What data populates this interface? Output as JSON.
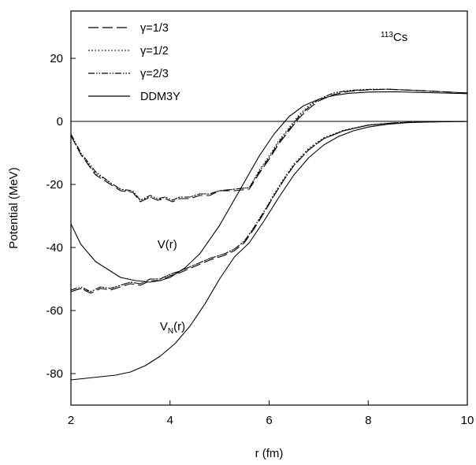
{
  "chart_data": {
    "type": "line",
    "title": "",
    "xlabel": "r (fm)",
    "ylabel": "Potential (MeV)",
    "xlim": [
      2,
      10
    ],
    "ylim": [
      -90,
      35
    ],
    "x_ticks": [
      2,
      4,
      6,
      8,
      10
    ],
    "y_ticks": [
      -80,
      -60,
      -40,
      -20,
      0,
      20
    ],
    "grid": false,
    "legend": {
      "placement": "top-left",
      "entries": [
        "γ=1/3",
        "γ=1/2",
        "γ=2/3",
        "DDM3Y"
      ]
    },
    "annotations": [
      {
        "id": "nucleus",
        "mass_number": "113",
        "symbol": "Cs",
        "x": 8.25,
        "y": 25.5
      },
      {
        "id": "total_label",
        "text": "V(r)",
        "x": 4.0,
        "y": -39
      },
      {
        "id": "nuclear_label",
        "base": "V",
        "sub": "N",
        "tail": "(r)",
        "x": 4.05,
        "y": -65
      }
    ],
    "zero_line": 0,
    "series": [
      {
        "name": "γ=1/3",
        "group": "V(r)",
        "style": "long-dash",
        "x": [
          2.0,
          2.2,
          2.5,
          2.8,
          3.0,
          3.25,
          3.4,
          3.6,
          3.75,
          3.9,
          4.05,
          4.2,
          4.4,
          4.6,
          4.8,
          5.0,
          5.3,
          5.6,
          5.8,
          6.0,
          6.2,
          6.4,
          6.6,
          6.8,
          7.0,
          7.3,
          7.6,
          8.0,
          8.4,
          9.0,
          9.5,
          10.0
        ],
        "y": [
          -4.5,
          -10.5,
          -17.0,
          -20.0,
          -22.0,
          -22.5,
          -25.5,
          -24.0,
          -25.0,
          -24.5,
          -25.5,
          -24.5,
          -24.5,
          -23.5,
          -23.5,
          -22.0,
          -22.0,
          -21.5,
          -16.5,
          -12.0,
          -7.0,
          -3.0,
          1.0,
          4.0,
          6.5,
          8.5,
          9.5,
          10.0,
          10.2,
          9.8,
          9.4,
          9.0
        ]
      },
      {
        "name": "γ=1/2",
        "group": "V(r)",
        "style": "dotted",
        "x": [
          2.0,
          2.2,
          2.5,
          2.8,
          3.0,
          3.25,
          3.4,
          3.6,
          3.75,
          3.9,
          4.05,
          4.2,
          4.4,
          4.6,
          4.8,
          5.0,
          5.3,
          5.6,
          5.8,
          6.0,
          6.2,
          6.4,
          6.6,
          6.8,
          7.0,
          7.3,
          7.6,
          8.0,
          8.4,
          9.0,
          9.5,
          10.0
        ],
        "y": [
          -4.5,
          -10.5,
          -16.5,
          -19.5,
          -21.5,
          -22.5,
          -25.0,
          -24.0,
          -25.0,
          -24.0,
          -25.0,
          -24.0,
          -24.0,
          -23.0,
          -23.0,
          -22.0,
          -21.5,
          -21.0,
          -15.5,
          -11.0,
          -6.0,
          -2.0,
          2.0,
          5.0,
          7.0,
          9.0,
          9.8,
          10.2,
          10.2,
          9.8,
          9.4,
          9.0
        ]
      },
      {
        "name": "γ=2/3",
        "group": "V(r)",
        "style": "dash-dot-dot",
        "x": [
          2.0,
          2.2,
          2.5,
          2.8,
          3.0,
          3.25,
          3.4,
          3.6,
          3.75,
          3.9,
          4.05,
          4.2,
          4.4,
          4.6,
          4.8,
          5.0,
          5.3,
          5.6,
          5.8,
          6.0,
          6.2,
          6.4,
          6.6,
          6.8,
          7.0,
          7.3,
          7.6,
          8.0,
          8.4,
          9.0,
          9.5,
          10.0
        ],
        "y": [
          -4.0,
          -10.0,
          -16.0,
          -19.5,
          -21.5,
          -22.0,
          -25.0,
          -23.5,
          -24.5,
          -24.0,
          -25.0,
          -24.0,
          -24.0,
          -23.0,
          -23.0,
          -22.0,
          -21.5,
          -21.0,
          -16.0,
          -11.5,
          -6.5,
          -2.5,
          1.5,
          4.5,
          7.0,
          9.0,
          9.8,
          10.1,
          10.2,
          9.8,
          9.4,
          9.0
        ]
      },
      {
        "name": "DDM3Y",
        "group": "V(r)",
        "style": "solid",
        "x": [
          2.0,
          2.2,
          2.5,
          2.8,
          3.0,
          3.3,
          3.6,
          3.8,
          4.0,
          4.3,
          4.6,
          5.0,
          5.4,
          5.8,
          6.1,
          6.4,
          6.7,
          7.0,
          7.3,
          7.6,
          8.0,
          8.5,
          9.0,
          9.5,
          10.0
        ],
        "y": [
          -32.5,
          -39.0,
          -44.5,
          -47.5,
          -49.5,
          -50.5,
          -51.0,
          -50.5,
          -49.5,
          -46.5,
          -42.0,
          -33.0,
          -22.0,
          -11.0,
          -4.0,
          1.5,
          5.0,
          7.0,
          8.2,
          8.9,
          9.3,
          9.4,
          9.2,
          9.0,
          8.8
        ]
      },
      {
        "name": "γ=1/3",
        "group": "V_N(r)",
        "style": "long-dash",
        "x": [
          2.0,
          2.2,
          2.4,
          2.6,
          2.8,
          3.0,
          3.2,
          3.4,
          3.6,
          3.8,
          4.0,
          4.2,
          4.5,
          4.8,
          5.1,
          5.3,
          5.5,
          5.7,
          5.9,
          6.1,
          6.3,
          6.5,
          6.8,
          7.1,
          7.5,
          8.0,
          8.5,
          9.0,
          9.5,
          10.0
        ],
        "y": [
          -54.0,
          -53.0,
          -54.5,
          -53.0,
          -53.5,
          -52.5,
          -51.5,
          -52.0,
          -50.5,
          -50.5,
          -49.0,
          -48.0,
          -46.0,
          -44.0,
          -42.5,
          -41.0,
          -38.5,
          -34.0,
          -29.0,
          -23.5,
          -18.5,
          -14.0,
          -9.0,
          -5.5,
          -3.0,
          -1.2,
          -0.5,
          -0.2,
          -0.1,
          0.0
        ]
      },
      {
        "name": "γ=1/2",
        "group": "V_N(r)",
        "style": "dotted",
        "x": [
          2.0,
          2.2,
          2.4,
          2.6,
          2.8,
          3.0,
          3.2,
          3.4,
          3.6,
          3.8,
          4.0,
          4.2,
          4.5,
          4.8,
          5.1,
          5.3,
          5.5,
          5.7,
          5.9,
          6.1,
          6.3,
          6.5,
          6.8,
          7.1,
          7.5,
          8.0,
          8.5,
          9.0,
          9.5,
          10.0
        ],
        "y": [
          -54.0,
          -53.0,
          -54.0,
          -52.5,
          -53.0,
          -52.0,
          -51.0,
          -51.5,
          -50.0,
          -50.0,
          -48.5,
          -47.5,
          -45.5,
          -43.5,
          -42.0,
          -40.5,
          -38.0,
          -33.5,
          -28.5,
          -23.0,
          -18.0,
          -13.5,
          -8.5,
          -5.2,
          -2.8,
          -1.1,
          -0.5,
          -0.2,
          -0.1,
          0.0
        ]
      },
      {
        "name": "γ=2/3",
        "group": "V_N(r)",
        "style": "dash-dot-dot",
        "x": [
          2.0,
          2.2,
          2.4,
          2.6,
          2.8,
          3.0,
          3.2,
          3.4,
          3.6,
          3.8,
          4.0,
          4.2,
          4.5,
          4.8,
          5.1,
          5.3,
          5.5,
          5.7,
          5.9,
          6.1,
          6.3,
          6.5,
          6.8,
          7.1,
          7.5,
          8.0,
          8.5,
          9.0,
          9.5,
          10.0
        ],
        "y": [
          -53.5,
          -52.5,
          -54.0,
          -52.5,
          -53.0,
          -52.0,
          -51.0,
          -51.5,
          -50.0,
          -50.0,
          -48.5,
          -47.5,
          -45.5,
          -43.5,
          -42.0,
          -40.5,
          -38.0,
          -33.5,
          -28.5,
          -23.5,
          -18.5,
          -14.0,
          -9.0,
          -5.5,
          -3.0,
          -1.2,
          -0.5,
          -0.2,
          -0.1,
          0.0
        ]
      },
      {
        "name": "DDM3Y",
        "group": "V_N(r)",
        "style": "solid",
        "x": [
          2.0,
          2.3,
          2.6,
          2.9,
          3.2,
          3.5,
          3.8,
          4.1,
          4.4,
          4.7,
          5.0,
          5.3,
          5.6,
          5.9,
          6.2,
          6.5,
          6.8,
          7.1,
          7.4,
          7.7,
          8.0,
          8.4,
          8.8,
          9.2,
          9.6,
          10.0
        ],
        "y": [
          -82.0,
          -81.5,
          -81.0,
          -80.5,
          -79.5,
          -77.5,
          -74.5,
          -70.5,
          -65.0,
          -58.0,
          -50.0,
          -43.0,
          -38.5,
          -31.5,
          -24.0,
          -17.0,
          -11.5,
          -7.5,
          -4.8,
          -3.0,
          -1.8,
          -0.9,
          -0.4,
          -0.2,
          -0.1,
          0.0
        ]
      }
    ]
  }
}
